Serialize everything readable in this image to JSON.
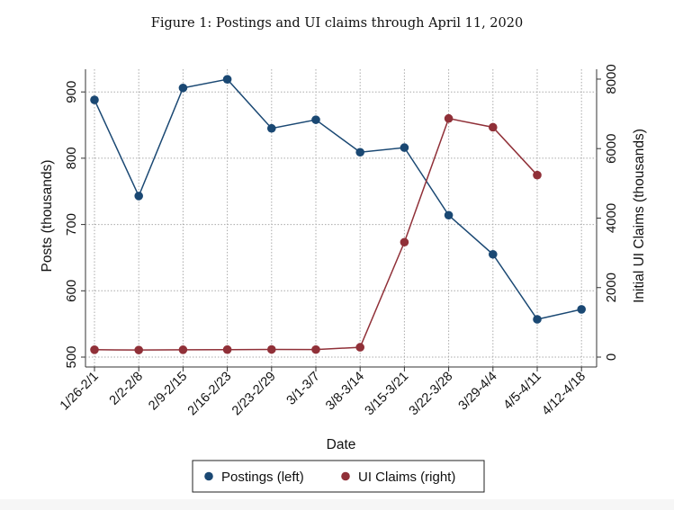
{
  "chart_data": {
    "type": "line",
    "title": "Figure 1: Postings and UI claims through April 11, 2020",
    "xlabel": "Date",
    "ylabel": "Posts (thousands)",
    "y2label": "Initial UI Claims (thousands)",
    "categories": [
      "1/26-2/1",
      "2/2-2/8",
      "2/9-2/15",
      "2/16-2/23",
      "2/23-2/29",
      "3/1-3/7",
      "3/8-3/14",
      "3/15-3/21",
      "3/22-3/28",
      "3/29-4/4",
      "4/5-4/11",
      "4/12-4/18"
    ],
    "ylim": [
      500,
      930
    ],
    "yticks": [
      500,
      600,
      700,
      800,
      900
    ],
    "y2lim": [
      -200,
      8300
    ],
    "y2ticks": [
      0,
      2000,
      4000,
      6000,
      8000
    ],
    "grid": true,
    "legend_position": "bottom",
    "series": [
      {
        "name": "Postings (left)",
        "axis": "left",
        "color": "#1a4873",
        "values": [
          888,
          743,
          906,
          919,
          845,
          858,
          809,
          816,
          714,
          655,
          557,
          572
        ]
      },
      {
        "name": "UI Claims (right)",
        "axis": "right",
        "color": "#903038",
        "values": [
          212,
          203,
          211,
          215,
          219,
          217,
          282,
          3307,
          6867,
          6615,
          5237,
          null
        ]
      }
    ]
  }
}
